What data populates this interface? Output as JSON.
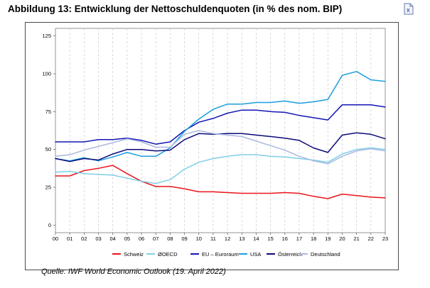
{
  "header": {
    "title": "Abbildung 13: Entwicklung der Nettoschuldenquoten (in % des nom. BIP)",
    "export_icon": "excel-icon"
  },
  "footer": {
    "source": "Quelle: IWF World Economic Outlook (19. April 2022)"
  },
  "chart_data": {
    "type": "line",
    "title": "",
    "xlabel": "",
    "ylabel": "",
    "x": [
      "00",
      "01",
      "02",
      "03",
      "04",
      "05",
      "06",
      "07",
      "08",
      "09",
      "10",
      "11",
      "12",
      "13",
      "14",
      "15",
      "16",
      "17",
      "18",
      "19",
      "20",
      "21",
      "22",
      "23"
    ],
    "ylim": [
      -5,
      130
    ],
    "yticks": [
      0,
      25,
      50,
      75,
      100,
      125
    ],
    "grid": "dashed-vertical",
    "legend": "bottom",
    "series": [
      {
        "name": "Schweiz",
        "color": "#e8141b",
        "values": [
          32.5,
          32.5,
          36,
          37.5,
          39.5,
          34,
          29,
          25.5,
          25.5,
          24,
          22,
          22,
          21.5,
          21,
          21,
          21,
          21.5,
          21,
          19,
          17.5,
          20.5,
          19.5,
          18.5,
          18
        ]
      },
      {
        "name": "ØOECD",
        "color": "#7ecfe8",
        "values": [
          35,
          35.5,
          34,
          33.5,
          33,
          31,
          29,
          27.5,
          30,
          37,
          41.5,
          44,
          45.5,
          46.5,
          46.5,
          45.5,
          45,
          44,
          43,
          41.5,
          47,
          50,
          51,
          50
        ]
      },
      {
        "name": "EU – Euroraum",
        "color": "#1515b5",
        "values": [
          55,
          55,
          55,
          56.5,
          56.5,
          57.5,
          56,
          53.5,
          55,
          62.5,
          68,
          70.5,
          74,
          76,
          76,
          75,
          74.5,
          72.5,
          71,
          69.5,
          79.5,
          79.5,
          79.5,
          78
        ]
      },
      {
        "name": "USA",
        "color": "#1a9ee0",
        "values": [
          44,
          42.5,
          44.5,
          42.5,
          45,
          48,
          45.5,
          45.5,
          51,
          62,
          70,
          76.5,
          80,
          80,
          81,
          81,
          82,
          80.5,
          81.5,
          83,
          99,
          101.5,
          96,
          95
        ]
      },
      {
        "name": "Österreich",
        "color": "#0a0a7a",
        "values": [
          44,
          42,
          44,
          43,
          47,
          50,
          50,
          49,
          49.5,
          56.5,
          60.5,
          60,
          60.5,
          60.5,
          59.5,
          58.5,
          57.5,
          56,
          51,
          48,
          59.5,
          61,
          60,
          57
        ]
      },
      {
        "name": "Deutschland",
        "color": "#aab9e0",
        "values": [
          45.5,
          46.5,
          49.5,
          52,
          54.5,
          57,
          55,
          51.5,
          51.5,
          60,
          62.5,
          60.5,
          59.5,
          58.5,
          55.5,
          52.5,
          49.5,
          45.5,
          42.5,
          40.5,
          45.5,
          49,
          50.5,
          49
        ]
      }
    ]
  }
}
